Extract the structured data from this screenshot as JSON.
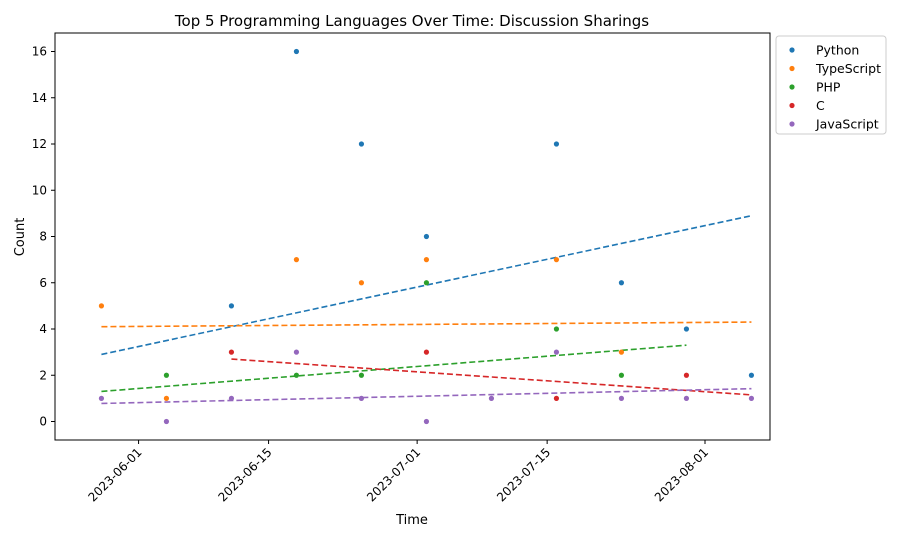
{
  "chart_data": {
    "type": "scatter",
    "title": "Top 5 Programming Languages Over Time: Discussion Sharings",
    "xlabel": "Time",
    "ylabel": "Count",
    "x_ticks": [
      "2023-06-01",
      "2023-06-15",
      "2023-07-01",
      "2023-07-15",
      "2023-08-01"
    ],
    "y_ticks": [
      0,
      2,
      4,
      6,
      8,
      10,
      12,
      14,
      16
    ],
    "xlim": [
      "2023-05-23",
      "2023-08-08"
    ],
    "ylim": [
      -0.8,
      16.8
    ],
    "grid": false,
    "legend_position": "outside-top-right",
    "trendline_style": "dashed",
    "series": [
      {
        "name": "Python",
        "color": "#1f77b4",
        "points": [
          {
            "x": "2023-06-11",
            "y": 5
          },
          {
            "x": "2023-06-18",
            "y": 16
          },
          {
            "x": "2023-06-25",
            "y": 12
          },
          {
            "x": "2023-07-02",
            "y": 8
          },
          {
            "x": "2023-07-16",
            "y": 12
          },
          {
            "x": "2023-07-23",
            "y": 6
          },
          {
            "x": "2023-07-30",
            "y": 4
          },
          {
            "x": "2023-08-06",
            "y": 2
          }
        ],
        "trend": {
          "start": {
            "x": "2023-05-28",
            "y": 2.9
          },
          "end": {
            "x": "2023-08-06",
            "y": 8.9
          }
        }
      },
      {
        "name": "TypeScript",
        "color": "#ff7f0e",
        "points": [
          {
            "x": "2023-05-28",
            "y": 5
          },
          {
            "x": "2023-06-04",
            "y": 1
          },
          {
            "x": "2023-06-18",
            "y": 7
          },
          {
            "x": "2023-06-25",
            "y": 6
          },
          {
            "x": "2023-07-02",
            "y": 7
          },
          {
            "x": "2023-07-16",
            "y": 7
          },
          {
            "x": "2023-07-23",
            "y": 3
          }
        ],
        "trend": {
          "start": {
            "x": "2023-05-28",
            "y": 4.1
          },
          "end": {
            "x": "2023-08-06",
            "y": 4.3
          }
        }
      },
      {
        "name": "PHP",
        "color": "#2ca02c",
        "points": [
          {
            "x": "2023-06-04",
            "y": 2
          },
          {
            "x": "2023-06-18",
            "y": 2
          },
          {
            "x": "2023-06-25",
            "y": 2
          },
          {
            "x": "2023-07-02",
            "y": 6
          },
          {
            "x": "2023-07-16",
            "y": 4
          },
          {
            "x": "2023-07-23",
            "y": 2
          }
        ],
        "trend": {
          "start": {
            "x": "2023-05-28",
            "y": 1.3
          },
          "end": {
            "x": "2023-07-30",
            "y": 3.3
          }
        }
      },
      {
        "name": "C",
        "color": "#d62728",
        "points": [
          {
            "x": "2023-06-11",
            "y": 3
          },
          {
            "x": "2023-07-02",
            "y": 3
          },
          {
            "x": "2023-07-16",
            "y": 1
          },
          {
            "x": "2023-07-30",
            "y": 2
          }
        ],
        "trend": {
          "start": {
            "x": "2023-06-11",
            "y": 2.7
          },
          "end": {
            "x": "2023-08-06",
            "y": 1.15
          }
        }
      },
      {
        "name": "JavaScript",
        "color": "#9467bd",
        "points": [
          {
            "x": "2023-05-28",
            "y": 1
          },
          {
            "x": "2023-06-04",
            "y": 0
          },
          {
            "x": "2023-06-11",
            "y": 1
          },
          {
            "x": "2023-06-18",
            "y": 3
          },
          {
            "x": "2023-06-25",
            "y": 1
          },
          {
            "x": "2023-07-02",
            "y": 0
          },
          {
            "x": "2023-07-09",
            "y": 1
          },
          {
            "x": "2023-07-16",
            "y": 3
          },
          {
            "x": "2023-07-23",
            "y": 1
          },
          {
            "x": "2023-07-30",
            "y": 1
          },
          {
            "x": "2023-08-06",
            "y": 1
          }
        ],
        "trend": {
          "start": {
            "x": "2023-05-28",
            "y": 0.78
          },
          "end": {
            "x": "2023-08-06",
            "y": 1.42
          }
        }
      }
    ]
  }
}
